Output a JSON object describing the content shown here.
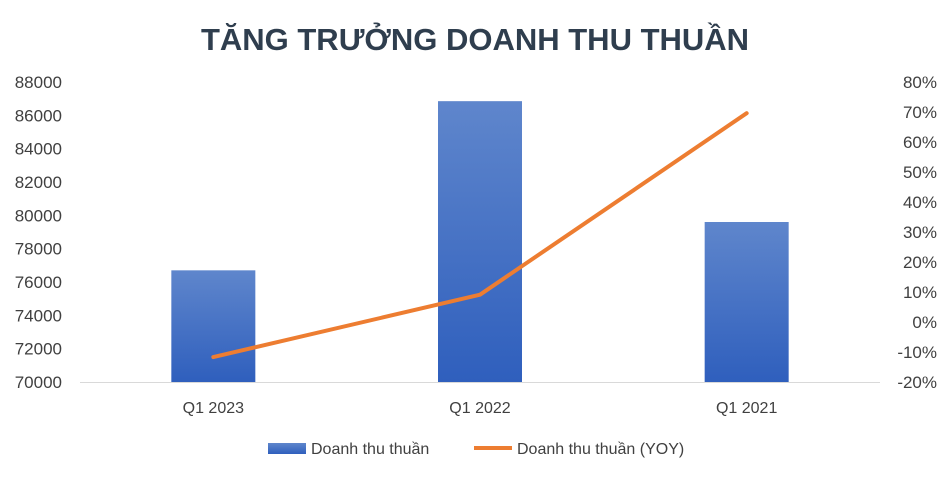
{
  "chart_data": {
    "type": "bar+line",
    "title": "TĂNG TRƯỞNG DOANH THU THUẦN",
    "categories": [
      "Q1 2023",
      "Q1 2022",
      "Q1 2021"
    ],
    "series": [
      {
        "name": "Doanh thu thuần",
        "type": "bar",
        "axis": "left",
        "color": "#4472c4",
        "values": [
          76700,
          86850,
          79600
        ]
      },
      {
        "name": "Doanh thu thuần (YOY)",
        "type": "line",
        "axis": "right",
        "color": "#ed7d31",
        "values": [
          -11.7,
          9.1,
          69.6
        ]
      }
    ],
    "y_left": {
      "min": 70000,
      "max": 88000,
      "step": 2000,
      "ticks": [
        "70000",
        "72000",
        "74000",
        "76000",
        "78000",
        "80000",
        "82000",
        "84000",
        "86000",
        "88000"
      ]
    },
    "y_right": {
      "min": -20,
      "max": 80,
      "step": 10,
      "ticks": [
        "-20%",
        "-10%",
        "0%",
        "10%",
        "20%",
        "30%",
        "40%",
        "50%",
        "60%",
        "70%",
        "80%"
      ]
    },
    "grid": false,
    "legend": "bottom"
  }
}
